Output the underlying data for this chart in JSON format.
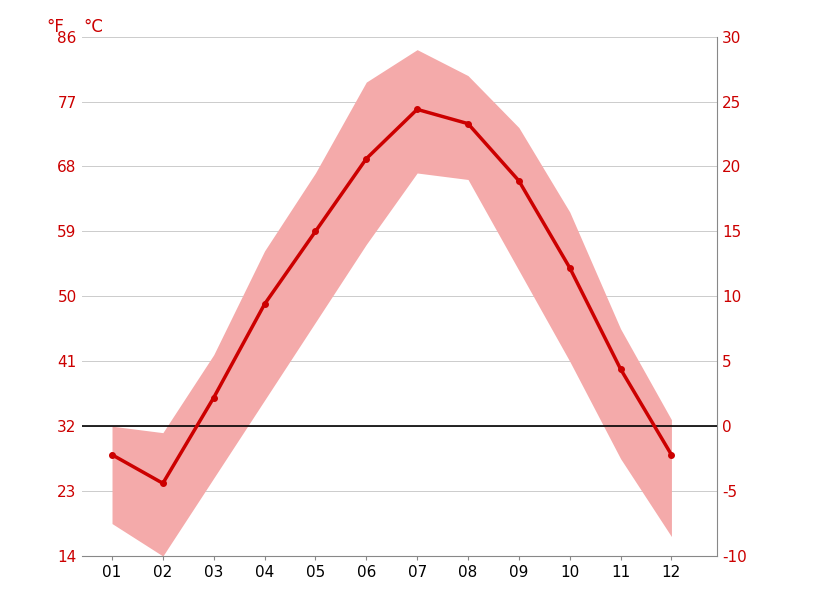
{
  "months": [
    1,
    2,
    3,
    4,
    5,
    6,
    7,
    8,
    9,
    10,
    11,
    12
  ],
  "month_labels": [
    "01",
    "02",
    "03",
    "04",
    "05",
    "06",
    "07",
    "08",
    "09",
    "10",
    "11",
    "12"
  ],
  "mean_temp_c": [
    -2.2,
    -4.4,
    2.2,
    9.4,
    15.0,
    20.6,
    24.4,
    23.3,
    18.9,
    12.2,
    4.4,
    -2.2
  ],
  "temp_max_c": [
    0.0,
    -0.5,
    5.5,
    13.5,
    19.5,
    26.5,
    29.0,
    27.0,
    23.0,
    16.5,
    7.5,
    0.5
  ],
  "temp_min_c": [
    -7.5,
    -10.0,
    -4.0,
    2.0,
    8.0,
    14.0,
    19.5,
    19.0,
    12.0,
    5.0,
    -2.5,
    -8.5
  ],
  "line_color": "#cc0000",
  "band_color": "#f4aaaa",
  "zero_line_color": "#000000",
  "grid_color": "#cccccc",
  "label_color": "#cc0000",
  "ylim_c": [
    -10,
    30
  ],
  "yticks_c": [
    -10,
    -5,
    0,
    5,
    10,
    15,
    20,
    25,
    30
  ],
  "yticks_f": [
    14,
    23,
    32,
    41,
    50,
    59,
    68,
    77,
    86
  ],
  "ylabel_f": "°F",
  "ylabel_c": "°C",
  "bg_color": "#ffffff",
  "figsize": [
    8.15,
    6.11
  ],
  "dpi": 100
}
